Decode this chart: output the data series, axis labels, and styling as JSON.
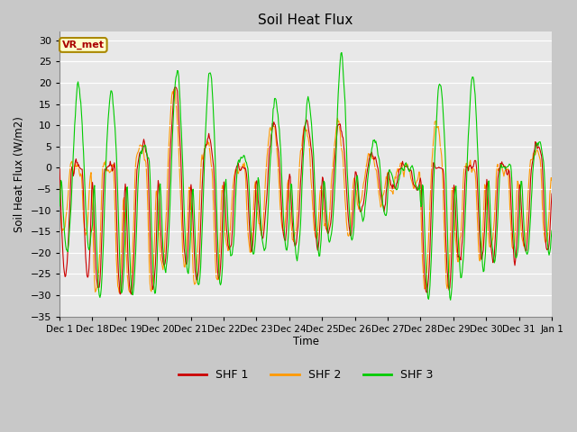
{
  "title": "Soil Heat Flux",
  "ylabel": "Soil Heat Flux (W/m2)",
  "xlabel": "Time",
  "ylim": [
    -35,
    32
  ],
  "yticks": [
    -35,
    -30,
    -25,
    -20,
    -15,
    -10,
    -5,
    0,
    5,
    10,
    15,
    20,
    25,
    30
  ],
  "colors": {
    "SHF1": "#cc0000",
    "SHF2": "#ff9900",
    "SHF3": "#00cc00"
  },
  "fig_bg_color": "#c8c8c8",
  "plot_bg": "#e8e8e8",
  "annotation_text": "VR_met",
  "annotation_bg": "#ffffcc",
  "annotation_fg": "#aa0000",
  "annotation_border": "#aa8800",
  "legend_labels": [
    "SHF 1",
    "SHF 2",
    "SHF 3"
  ],
  "tick_labels": [
    "Dec 1",
    "Dec 18",
    "Dec 19",
    "Dec 20",
    "Dec 21",
    "Dec 22",
    "Dec 23",
    "Dec 24",
    "Dec 25",
    "Dec 26",
    "Dec 27",
    "Dec 28",
    "Dec 29",
    "Dec 30",
    "Dec 31",
    "Jan 1"
  ],
  "figsize": [
    6.4,
    4.8
  ],
  "dpi": 100
}
